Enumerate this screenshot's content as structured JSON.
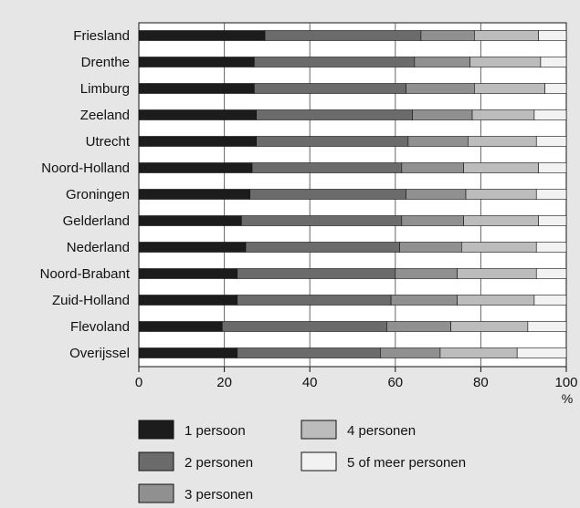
{
  "chart_data": {
    "type": "bar",
    "orientation": "horizontal",
    "stacked": true,
    "categories": [
      "Friesland",
      "Drenthe",
      "Limburg",
      "Zeeland",
      "Utrecht",
      "Noord-Holland",
      "Groningen",
      "Gelderland",
      "Nederland",
      "Noord-Brabant",
      "Zuid-Holland",
      "Flevoland",
      "Overijssel"
    ],
    "series": [
      {
        "name": "1 persoon",
        "color": "#1c1c1c",
        "values": [
          29.5,
          27,
          27,
          27.5,
          27.5,
          26.5,
          26,
          24,
          25,
          23,
          23,
          19.5,
          23
        ]
      },
      {
        "name": "2 personen",
        "color": "#6b6b6b",
        "values": [
          36.5,
          37.5,
          35.5,
          36.5,
          35.5,
          35,
          36.5,
          37.5,
          36,
          37,
          36,
          38.5,
          33.5
        ]
      },
      {
        "name": "3 personen",
        "color": "#909090",
        "values": [
          12.5,
          13,
          16,
          14,
          14,
          14.5,
          14,
          14.5,
          14.5,
          14.5,
          15.5,
          15,
          14
        ]
      },
      {
        "name": "4 personen",
        "color": "#bcbcbc",
        "values": [
          15,
          16.5,
          16.5,
          14.5,
          16,
          17.5,
          16.5,
          17.5,
          17.5,
          18.5,
          18,
          18,
          18
        ]
      },
      {
        "name": "5 of meer personen",
        "color": "#f2f2f2",
        "values": [
          6.5,
          6,
          5,
          7.5,
          7,
          6.5,
          7,
          6.5,
          7,
          7,
          7.5,
          9,
          11.5
        ]
      }
    ],
    "xlim": [
      0,
      100
    ],
    "xticks": [
      "0",
      "20",
      "40",
      "60",
      "80",
      "100"
    ],
    "xunit": "%",
    "legend_placement": "bottom",
    "grid": "vertical"
  }
}
